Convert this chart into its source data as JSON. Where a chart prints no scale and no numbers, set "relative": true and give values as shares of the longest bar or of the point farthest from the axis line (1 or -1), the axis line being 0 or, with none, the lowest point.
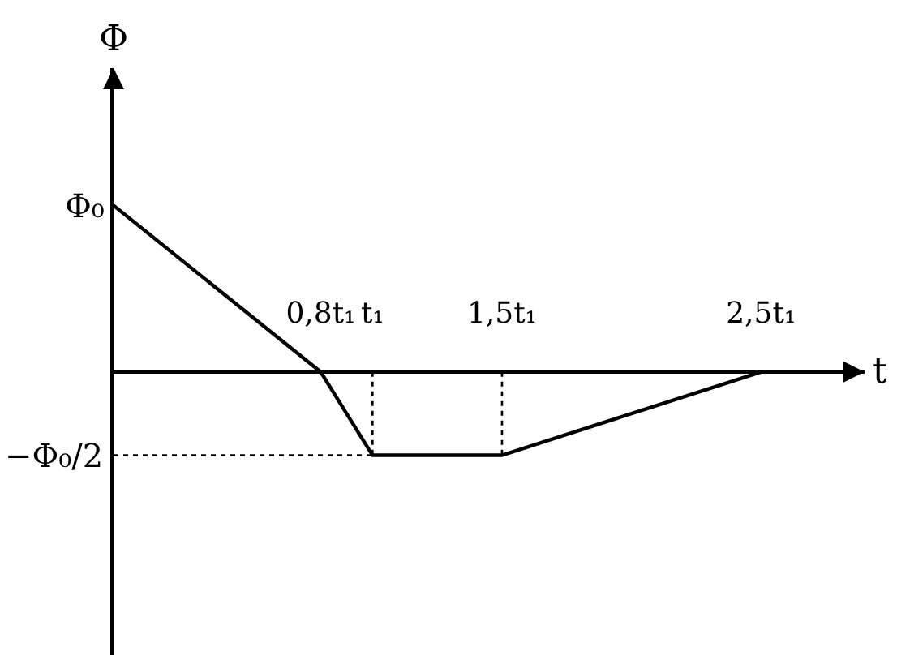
{
  "chart_data": {
    "type": "line",
    "relative": true,
    "xlabel": "t",
    "ylabel": "Φ",
    "line_style": "solid",
    "xlim": [
      0,
      2.9
    ],
    "xticks": [
      {
        "value": 0.8,
        "label": "0,8t₁"
      },
      {
        "value": 1,
        "label": "t₁"
      },
      {
        "value": 1.5,
        "label": "1,5t₁"
      },
      {
        "value": 2.5,
        "label": "2,5t₁"
      }
    ],
    "annotations": [
      {
        "text": "Φ₀",
        "x": 0,
        "y": 1
      },
      {
        "text": "−Φ₀/2",
        "x": 0,
        "y": -0.5
      }
    ],
    "series": [
      {
        "color": "#000000",
        "x": [
          0,
          0.8,
          1,
          1.5,
          2.5
        ],
        "values": [
          1,
          0,
          -0.5,
          -0.5,
          0
        ]
      },
      {
        "line_style": "dotted",
        "color": "#000000",
        "x": [
          0,
          1
        ],
        "values": [
          -0.5,
          -0.5
        ]
      },
      {
        "line_style": "dotted",
        "color": "#000000",
        "x": [
          1,
          1
        ],
        "values": [
          0,
          -0.5
        ]
      },
      {
        "line_style": "dotted",
        "color": "#000000",
        "x": [
          1.5,
          1.5
        ],
        "values": [
          0,
          -0.5
        ]
      }
    ]
  }
}
